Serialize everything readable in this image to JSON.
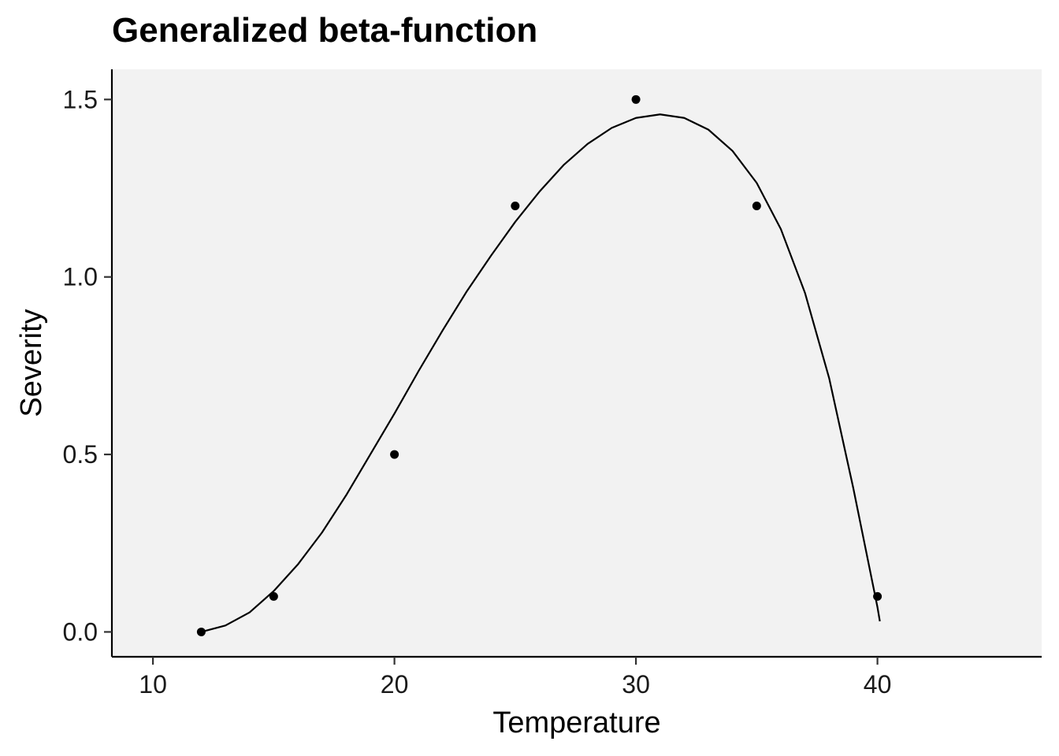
{
  "chart_data": {
    "type": "scatter",
    "title": "Generalized beta-function",
    "xlabel": "Temperature",
    "ylabel": "Severity",
    "xlim": [
      8.3,
      46.8
    ],
    "ylim": [
      -0.07,
      1.585
    ],
    "x_ticks": [
      10,
      20,
      30,
      40
    ],
    "y_ticks": [
      0.0,
      0.5,
      1.0,
      1.5
    ],
    "x_tick_labels": [
      "10",
      "20",
      "30",
      "40"
    ],
    "y_tick_labels": [
      "0.0",
      "0.5",
      "1.0",
      "1.5"
    ],
    "points": [
      {
        "x": 12,
        "y": 0.0
      },
      {
        "x": 15,
        "y": 0.1
      },
      {
        "x": 20,
        "y": 0.5
      },
      {
        "x": 25,
        "y": 1.2
      },
      {
        "x": 30,
        "y": 1.5
      },
      {
        "x": 35,
        "y": 1.2
      },
      {
        "x": 40,
        "y": 0.1
      }
    ],
    "fit_curve": {
      "model": "generalized beta",
      "x_range": [
        12,
        40.1
      ],
      "points": [
        [
          12,
          0.0
        ],
        [
          13,
          0.018
        ],
        [
          14,
          0.055
        ],
        [
          15,
          0.115
        ],
        [
          16,
          0.19
        ],
        [
          17,
          0.28
        ],
        [
          18,
          0.385
        ],
        [
          19,
          0.5
        ],
        [
          20,
          0.615
        ],
        [
          21,
          0.735
        ],
        [
          22,
          0.85
        ],
        [
          23,
          0.96
        ],
        [
          24,
          1.06
        ],
        [
          25,
          1.155
        ],
        [
          26,
          1.24
        ],
        [
          27,
          1.315
        ],
        [
          28,
          1.375
        ],
        [
          29,
          1.42
        ],
        [
          30,
          1.448
        ],
        [
          31,
          1.458
        ],
        [
          32,
          1.448
        ],
        [
          33,
          1.415
        ],
        [
          34,
          1.355
        ],
        [
          35,
          1.265
        ],
        [
          36,
          1.135
        ],
        [
          37,
          0.955
        ],
        [
          38,
          0.715
        ],
        [
          39,
          0.405
        ],
        [
          40,
          0.07
        ],
        [
          40.1,
          0.03
        ]
      ]
    },
    "grid": false,
    "panel_background": "#f2f2f2",
    "point_color": "#000000",
    "line_color": "#000000"
  }
}
